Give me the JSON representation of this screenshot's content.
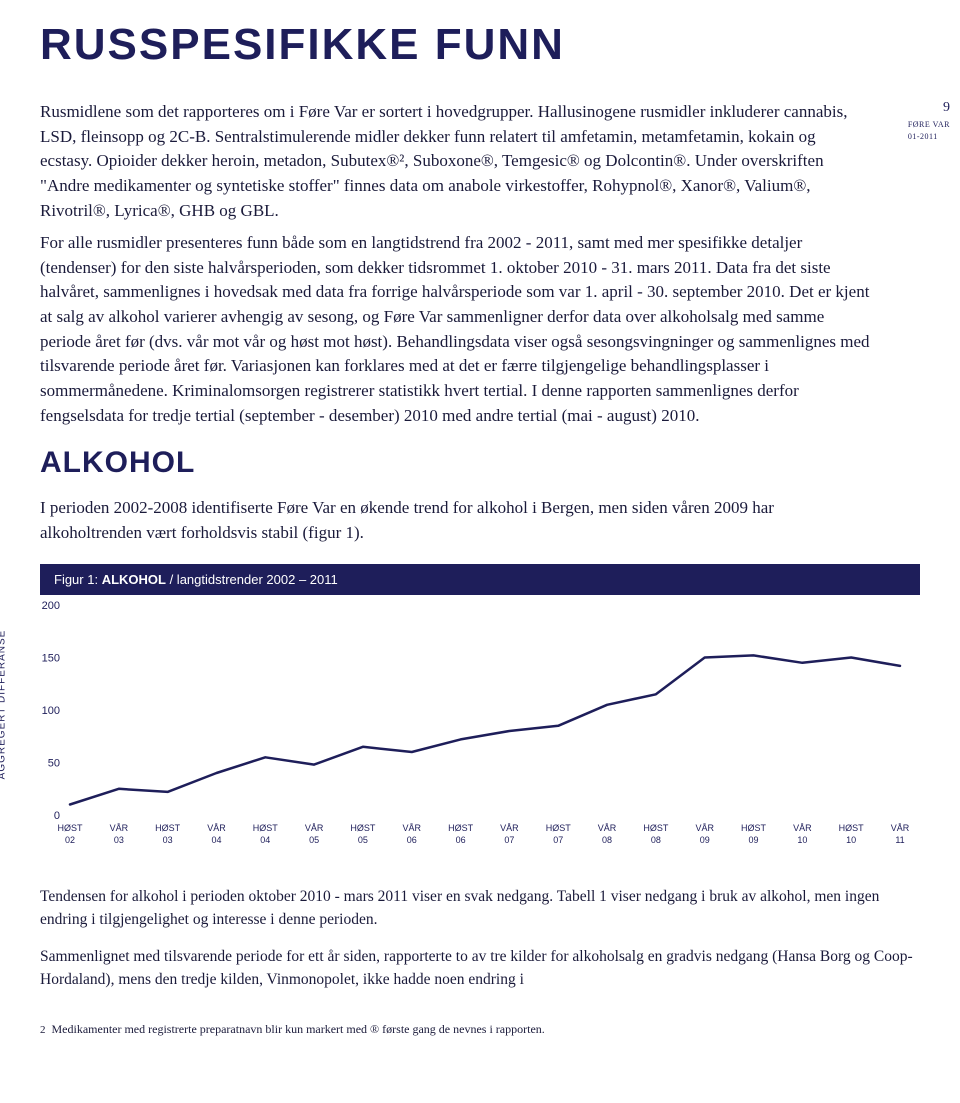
{
  "main_title": "RUSSPESIFIKKE FUNN",
  "page_meta": {
    "num": "9",
    "line1": "FØRE VAR",
    "line2": "01-2011"
  },
  "para1": "Rusmidlene som det rapporteres om i Føre Var er sortert i hovedgrupper. Hallusinogene rusmidler inkluderer cannabis, LSD, fleinsopp og 2C-B. Sentralstimulerende midler dekker funn relatert til amfetamin, metamfetamin, kokain og ecstasy. Opioider dekker heroin, metadon, Subutex®², Suboxone®, Temgesic® og Dolcontin®. Under overskriften \"Andre medikamenter og syntetiske stoffer\" finnes data om anabole virkestoffer, Rohypnol®, Xanor®, Valium®, Rivotril®, Lyrica®, GHB og GBL.",
  "para2": "For alle rusmidler presenteres funn både som en langtidstrend fra 2002 - 2011, samt med mer spesifikke detaljer (tendenser) for den siste halvårsperioden, som dekker tidsrommet 1. oktober 2010 - 31. mars 2011. Data fra det siste halvåret, sammenlignes i hovedsak med data fra forrige halvårsperiode som var 1. april - 30. september 2010. Det er kjent at salg av alkohol varierer avhengig av sesong, og Føre Var sammenligner derfor data over alkoholsalg med samme periode året før (dvs. vår mot vår og høst mot høst). Behandlingsdata viser også sesongsvingninger og sammenlignes med tilsvarende periode året før. Variasjonen kan forklares med at det er færre tilgjengelige behandlingsplasser i sommermånedene. Kriminalomsorgen registrerer statistikk hvert tertial. I denne rapporten sammenlignes derfor fengselsdata for tredje tertial (september - desember) 2010 med andre tertial (mai - august) 2010.",
  "sub_title": "ALKOHOL",
  "para3": "I perioden 2002-2008 identifiserte Føre Var en økende trend for alkohol i Bergen, men siden våren 2009 har alkoholtrenden vært forholdsvis stabil (figur 1).",
  "chart_label_bold": "ALKOHOL",
  "chart_label_rest": " / langtidstrender 2002 – 2011",
  "chart_prefix": "Figur 1: ",
  "chart": {
    "type": "line",
    "ylabel": "AGGREGERT DIFFERANSE",
    "ylim": [
      0,
      200
    ],
    "yticks": [
      0,
      50,
      100,
      150,
      200
    ],
    "x_labels": [
      "HØST 02",
      "VÅR 03",
      "HØST 03",
      "VÅR 04",
      "HØST 04",
      "VÅR 05",
      "HØST 05",
      "VÅR 06",
      "HØST 06",
      "VÅR 07",
      "HØST 07",
      "VÅR 08",
      "HØST 08",
      "VÅR 09",
      "HØST 09",
      "VÅR 10",
      "HØST 10",
      "VÅR 11"
    ],
    "values": [
      10,
      25,
      22,
      40,
      55,
      48,
      65,
      60,
      72,
      80,
      85,
      105,
      115,
      150,
      152,
      145,
      150,
      142
    ],
    "line_color": "#1e1e5a",
    "line_width": 2.5,
    "axis_color": "#1e1e5a",
    "background": "#ffffff",
    "xlabel_fontsize": 9,
    "ylabel_fontsize": 10,
    "tick_fontsize": 11
  },
  "para4": "Tendensen for alkohol i perioden oktober 2010 - mars 2011 viser en svak nedgang. Tabell 1 viser nedgang i bruk av alkohol, men ingen endring i tilgjengelighet og interesse i denne perioden.",
  "para5": "Sammenlignet med tilsvarende periode for ett år siden, rapporterte to av tre kilder for alkoholsalg en gradvis nedgang (Hansa Borg og Coop-Hordaland), mens den tredje kilden, Vinmonopolet, ikke hadde noen endring i",
  "footnote_num": "2",
  "footnote_text": "Medikamenter med registrerte preparatnavn blir kun markert med ® første gang de nevnes i rapporten."
}
